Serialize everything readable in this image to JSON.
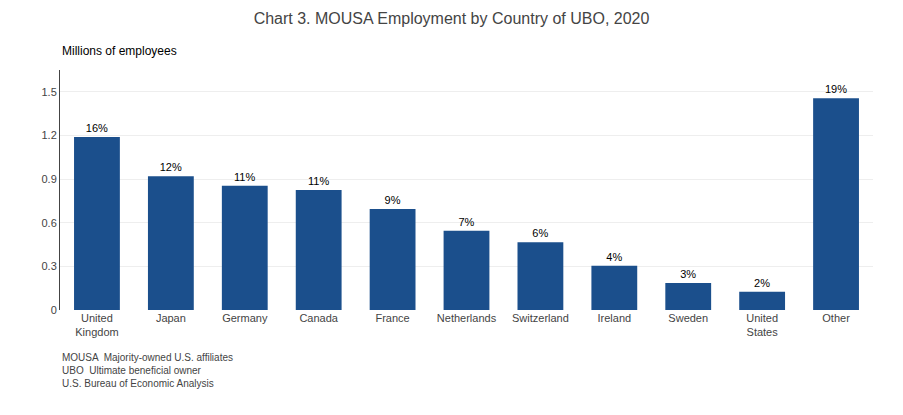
{
  "chart_data": {
    "type": "bar",
    "title": "Chart 3. MOUSA Employment by Country of UBO, 2020",
    "ylabel": "Millions of employees",
    "categories": [
      "United\nKingdom",
      "Japan",
      "Germany",
      "Canada",
      "France",
      "Netherlands",
      "Switzerland",
      "Ireland",
      "Sweden",
      "United\nStates",
      "Other"
    ],
    "values": [
      1.19,
      0.92,
      0.855,
      0.825,
      0.695,
      0.545,
      0.465,
      0.305,
      0.185,
      0.125,
      1.455
    ],
    "percentages": [
      "16%",
      "12%",
      "11%",
      "11%",
      "9%",
      "7%",
      "6%",
      "4%",
      "3%",
      "2%",
      "19%"
    ],
    "color": "#1B4F8C",
    "ylim": [
      0,
      1.65
    ],
    "yticks": [
      0,
      0.3,
      0.6,
      0.9,
      1.2,
      1.5
    ],
    "grid": true,
    "notes": [
      "MOUSA  Majority-owned U.S. affiliates",
      "UBO  Ultimate beneficial owner",
      "U.S. Bureau of Economic Analysis"
    ]
  }
}
